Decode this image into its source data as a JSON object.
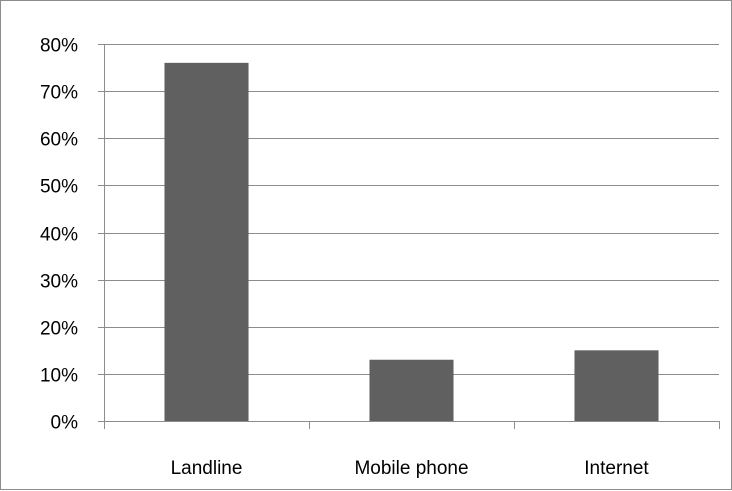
{
  "chart_data": {
    "type": "bar",
    "categories": [
      "Landline",
      "Mobile phone",
      "Internet"
    ],
    "values": [
      76,
      13,
      15
    ],
    "unit": "%",
    "ylim": [
      0,
      80
    ],
    "yticks": [
      0,
      10,
      20,
      30,
      40,
      50,
      60,
      70,
      80
    ],
    "ytick_labels": [
      "0%",
      "10%",
      "20%",
      "30%",
      "40%",
      "50%",
      "60%",
      "70%",
      "80%"
    ],
    "title": "",
    "xlabel": "",
    "ylabel": "",
    "grid": true,
    "legend": "none",
    "bar_color": "#606060",
    "grid_color": "#8c8c8c"
  }
}
